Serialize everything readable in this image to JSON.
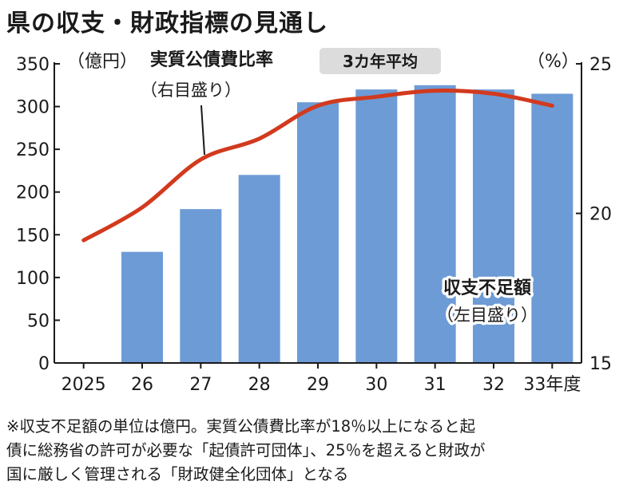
{
  "title": "県の収支・財政指標の見通し",
  "colors": {
    "bar": "#6d9bd6",
    "line": "#d23a1e",
    "axis": "#1a1a1a",
    "badge_bg": "#dcdcdc"
  },
  "chart_data": {
    "type": "bar+line",
    "categories": [
      "2025",
      "26",
      "27",
      "28",
      "29",
      "30",
      "31",
      "32",
      "33年度"
    ],
    "left_axis": {
      "unit_label": "（億円）",
      "ylim": [
        0,
        350
      ],
      "ticks": [
        "0",
        "50",
        "100",
        "150",
        "200",
        "250",
        "300",
        "350"
      ]
    },
    "right_axis": {
      "unit_label": "（%）",
      "ylim": [
        15,
        25
      ],
      "ticks": [
        "15",
        "20",
        "25"
      ]
    },
    "series": [
      {
        "name": "収支不足額",
        "axis": "left",
        "type": "bar",
        "values": [
          null,
          130,
          180,
          220,
          305,
          320,
          325,
          320,
          315
        ]
      },
      {
        "name": "実質公債費比率",
        "axis": "right",
        "type": "line",
        "values": [
          19.1,
          20.2,
          21.8,
          22.5,
          23.6,
          23.9,
          24.1,
          24.0,
          23.6
        ]
      }
    ],
    "annotations": {
      "line_label": "実質公債費比率",
      "line_badge": "3カ年平均",
      "line_axis_note": "（右目盛り）",
      "bar_label": "収支不足額",
      "bar_axis_note": "（左目盛り）"
    }
  },
  "footnote": {
    "lines": [
      "※収支不足額の単位は億円。実質公債費比率が18％以上になると起",
      "債に総務省の許可が必要な「起債許可団体」、25％を超えると財政が",
      "国に厳しく管理される「財政健全化団体」となる"
    ]
  }
}
